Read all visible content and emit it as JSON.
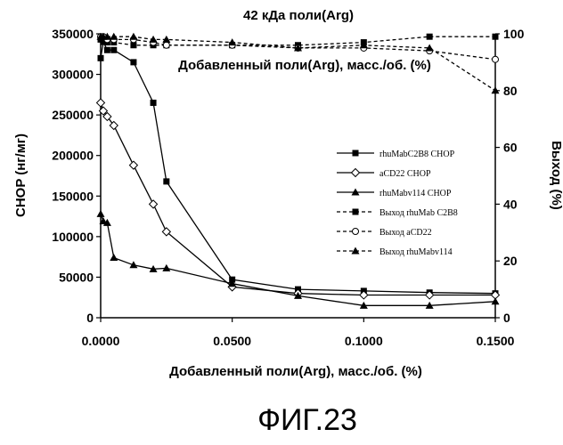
{
  "chart_data": {
    "type": "line",
    "title": "42 кДа поли(Arg)",
    "xlabel": "Добавленный поли(Arg), масс./об. (%)",
    "ylabel": "CHOP (нг/мг)",
    "y2label": "Выход (%)",
    "inner_label": "Добавленный поли(Arg), масс./об. (%)",
    "figure_label": "ФИГ.23",
    "xlim": [
      0,
      0.15
    ],
    "ylim": [
      0,
      350000
    ],
    "y2lim": [
      0,
      100
    ],
    "x_ticks": [
      "0.0000",
      "0.0500",
      "0.1000",
      "0.1500"
    ],
    "x_tick_values": [
      0,
      0.05,
      0.1,
      0.15
    ],
    "y_ticks": [
      "0",
      "50000",
      "100000",
      "150000",
      "200000",
      "250000",
      "300000",
      "350000"
    ],
    "y_tick_values": [
      0,
      50000,
      100000,
      150000,
      200000,
      250000,
      300000,
      350000
    ],
    "y2_ticks": [
      "0",
      "20",
      "40",
      "60",
      "80",
      "100"
    ],
    "y2_tick_values": [
      0,
      20,
      40,
      60,
      80,
      100
    ],
    "legend_position": "right",
    "series": [
      {
        "name": "rhuMabC2B8 CHOP",
        "axis": "left",
        "marker": "square",
        "dash": false,
        "x": [
          0,
          0.001,
          0.0025,
          0.005,
          0.0125,
          0.02,
          0.025,
          0.05,
          0.075,
          0.1,
          0.125,
          0.15
        ],
        "y": [
          320000,
          340000,
          330000,
          330000,
          315000,
          265000,
          168000,
          47000,
          35000,
          33000,
          31000,
          30000
        ]
      },
      {
        "name": "aCD22 CHOP",
        "axis": "left",
        "marker": "diamond",
        "dash": false,
        "x": [
          0,
          0.001,
          0.0025,
          0.005,
          0.0125,
          0.02,
          0.025,
          0.05,
          0.075,
          0.1,
          0.125,
          0.15
        ],
        "y": [
          265000,
          255000,
          248000,
          237000,
          188000,
          140000,
          106000,
          38000,
          30000,
          28000,
          28000,
          28000
        ]
      },
      {
        "name": "rhuMabv114 CHOP",
        "axis": "left",
        "marker": "triangle",
        "dash": false,
        "x": [
          0,
          0.001,
          0.0025,
          0.005,
          0.0125,
          0.02,
          0.025,
          0.05,
          0.075,
          0.1,
          0.125,
          0.15
        ],
        "y": [
          128000,
          119000,
          117000,
          74000,
          65000,
          60000,
          61000,
          42000,
          27000,
          15000,
          15000,
          20000
        ]
      },
      {
        "name": "Выход rhuMab C2B8",
        "axis": "right",
        "marker": "square",
        "dash": true,
        "x": [
          0,
          0.001,
          0.0025,
          0.005,
          0.0125,
          0.02,
          0.025,
          0.05,
          0.075,
          0.1,
          0.125,
          0.15
        ],
        "y": [
          98,
          98,
          97,
          97,
          96,
          96,
          96,
          96,
          96,
          97,
          99,
          99
        ]
      },
      {
        "name": "Выход aCD22",
        "axis": "right",
        "marker": "circle",
        "dash": true,
        "x": [
          0,
          0.001,
          0.0025,
          0.005,
          0.0125,
          0.02,
          0.025,
          0.05,
          0.075,
          0.1,
          0.125,
          0.15
        ],
        "y": [
          99,
          99,
          98,
          98,
          98,
          97,
          96,
          96,
          95,
          95,
          94,
          91
        ]
      },
      {
        "name": "Выход rhuMabv114",
        "axis": "right",
        "marker": "triangle",
        "dash": true,
        "x": [
          0,
          0.001,
          0.0025,
          0.005,
          0.0125,
          0.02,
          0.025,
          0.05,
          0.075,
          0.1,
          0.125,
          0.15
        ],
        "y": [
          99,
          99,
          99,
          99,
          99,
          98,
          98,
          97,
          95,
          96,
          95,
          80
        ]
      }
    ]
  }
}
